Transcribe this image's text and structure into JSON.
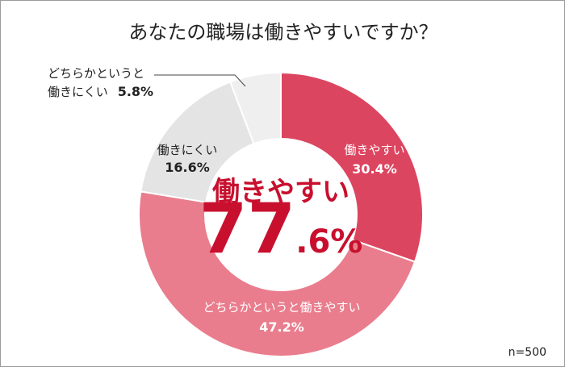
{
  "chart_data": {
    "type": "pie",
    "title": "あなたの職場は働きやすいですか？",
    "categories": [
      "働きやすい",
      "どちらかというと働きやすい",
      "働きにくい",
      "どちらかというと働きにくい"
    ],
    "values": [
      30.4,
      47.2,
      16.6,
      5.8
    ],
    "labels": [
      {
        "name": "働きやすい",
        "value": "30.4%"
      },
      {
        "name": "どちらかというと働きやすい",
        "value": "47.2%"
      },
      {
        "name": "働きにくい",
        "value": "16.6%"
      },
      {
        "name_line1": "どちらかというと",
        "name_line2": "働きにくい",
        "value": "5.8%"
      }
    ],
    "colors": [
      "#dc4560",
      "#e97d8d",
      "#e4e4e4",
      "#efefef"
    ],
    "center_label": "働きやすい",
    "center_value_main": "77",
    "center_value_sub": ".6%",
    "sample_size": "n=500"
  }
}
